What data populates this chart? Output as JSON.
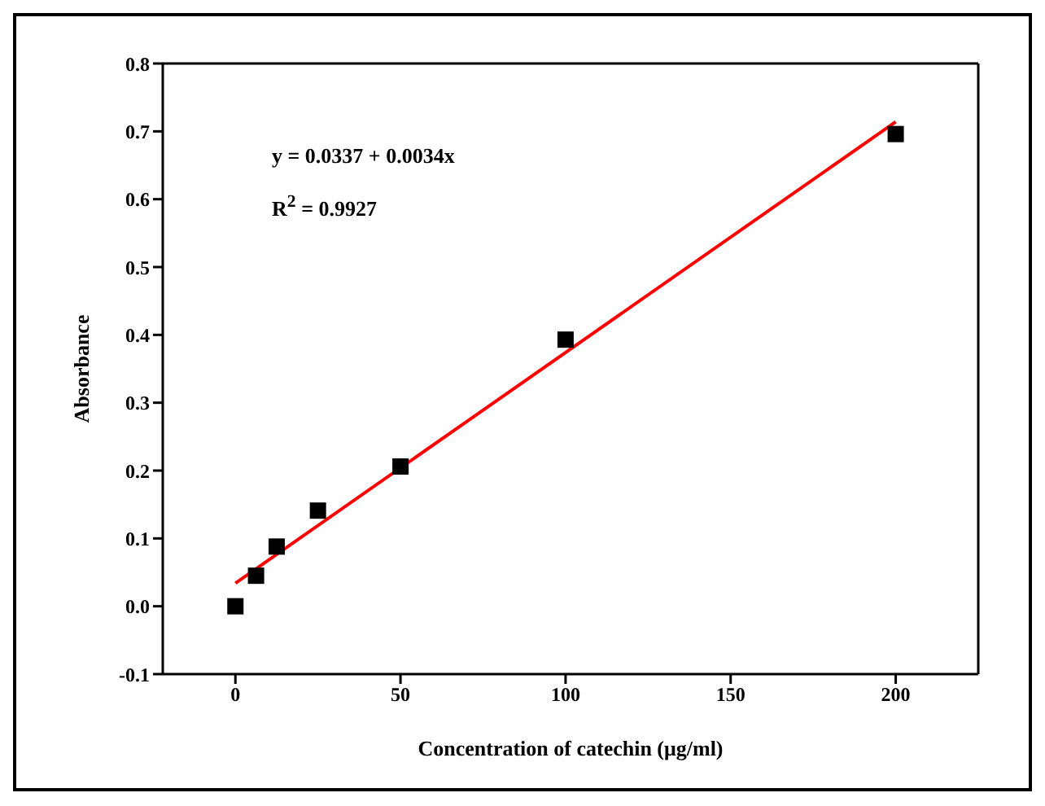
{
  "chart_data": {
    "type": "scatter",
    "xlabel": "Concentration of catechin (μg/ml)",
    "ylabel": "Absorbance",
    "xlim": [
      -22,
      225
    ],
    "xticks": [
      0,
      50,
      100,
      150,
      200
    ],
    "ylim": [
      -0.1,
      0.8
    ],
    "yticks": [
      -0.1,
      {
        "value": 0,
        "label": "0.0"
      },
      0.1,
      0.2,
      0.3,
      0.4,
      0.5,
      0.6,
      0.7,
      0.8
    ],
    "series": [
      {
        "color": "#000000",
        "marker": "square",
        "x": [
          0,
          6.25,
          12.5,
          25,
          50,
          100,
          200
        ],
        "values": [
          0.0,
          0.045,
          0.088,
          0.141,
          0.206,
          0.393,
          0.696
        ]
      },
      {
        "type": "line",
        "color": "#ff0000",
        "marker": "none",
        "line_style": "solid",
        "x": [
          0,
          200
        ],
        "values": [
          0.034,
          0.714
        ]
      }
    ],
    "annotations": [
      "y = 0.0337 + 0.0034x",
      "R$^{2}$ = 0.9927"
    ],
    "grid": false,
    "legend": false
  }
}
